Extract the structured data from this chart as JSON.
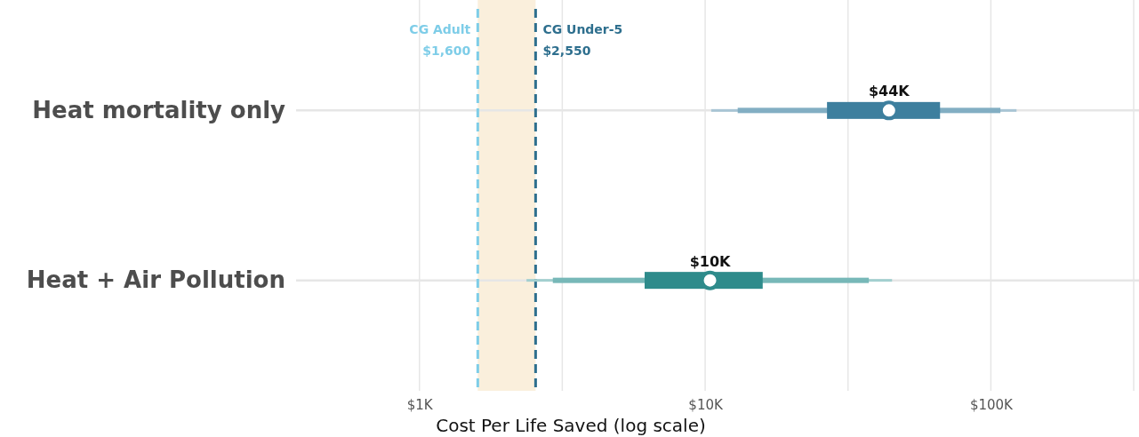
{
  "chart_data": {
    "type": "bar",
    "orientation": "horizontal",
    "xlabel": "Cost Per Life Saved (log scale)",
    "log": "x",
    "grid": true,
    "categories": [
      "Heat mortality only",
      "Heat + Air Pollution"
    ],
    "xlim": [
      370,
      330000
    ],
    "xticks": [
      {
        "value": 1000,
        "label": "$1K"
      },
      {
        "value": 3162,
        "label": null
      },
      {
        "value": 10000,
        "label": "$10K"
      },
      {
        "value": 31623,
        "label": null
      },
      {
        "value": 100000,
        "label": "$100K"
      },
      {
        "value": 316228,
        "label": null
      }
    ],
    "series": [
      {
        "type": "bar",
        "colors": [
          "#a9c5d4",
          "#a3cfcf"
        ],
        "base": [
          10500,
          2370
        ],
        "values": [
          112500,
          42730
        ]
      },
      {
        "type": "bar",
        "colors": [
          "#82aec3",
          "#77b8b8"
        ],
        "base": [
          13000,
          2930
        ],
        "values": [
          95000,
          34470
        ]
      },
      {
        "type": "bar",
        "colors": [
          "#3d7f9e",
          "#2e8b8b"
        ],
        "base": [
          26700,
          6140
        ],
        "values": [
          39700,
          9760
        ]
      },
      {
        "type": "scatter",
        "colors": [
          "#3d7f9e",
          "#2e8b8b"
        ],
        "values": [
          44000,
          10400
        ],
        "value_labels": [
          "$44K",
          "$10K"
        ]
      }
    ],
    "bands": [
      {
        "axis": "x",
        "from": 1600,
        "to": 2550,
        "color": "#faefdc"
      }
    ],
    "ref_lines": [
      {
        "axis": "x",
        "value": 1600,
        "label": "CG Adult\n$1,600",
        "color": "#7ecde8",
        "line_style": "dashed"
      },
      {
        "axis": "x",
        "value": 2550,
        "label": "CG Under-5\n$2,550",
        "color": "#2e6f8e",
        "line_style": "dashed"
      }
    ]
  }
}
